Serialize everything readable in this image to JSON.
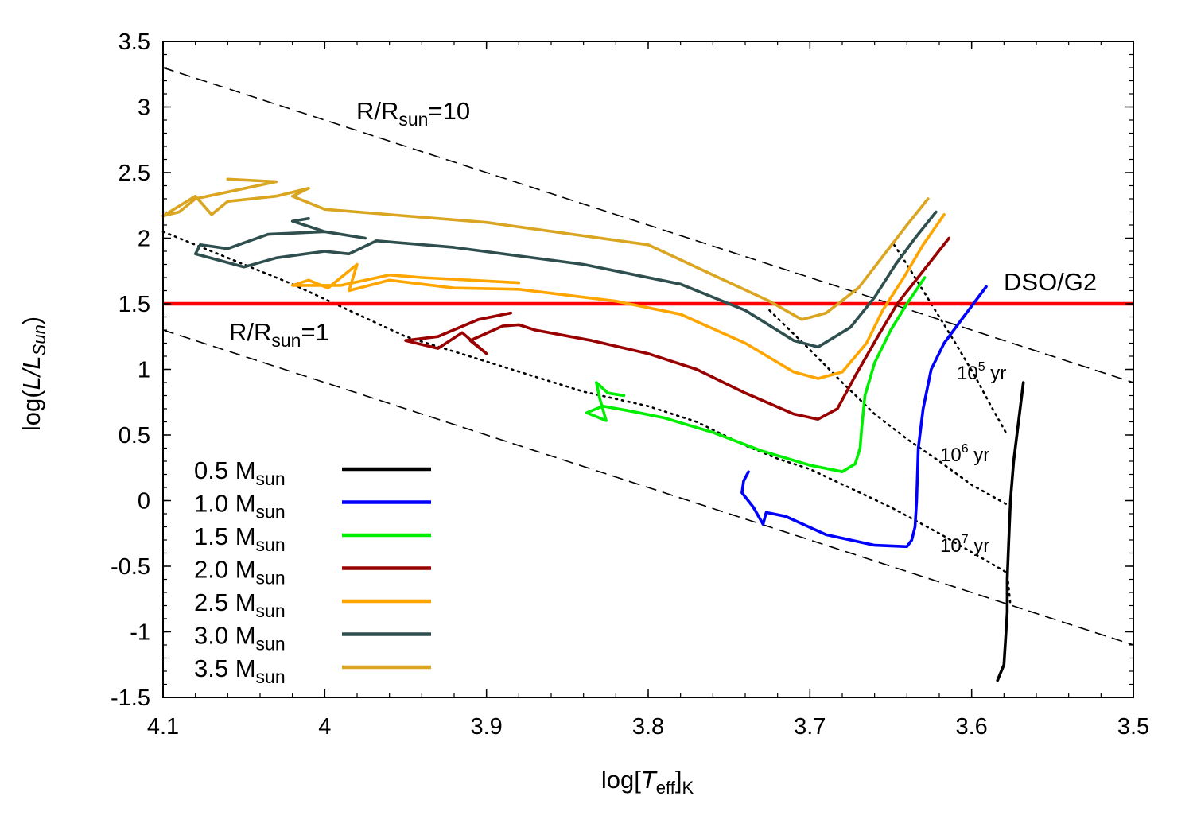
{
  "chart_data": {
    "type": "line",
    "title": "",
    "xlabel": {
      "main": "log[",
      "italic": "T",
      "sub": "eff",
      "close": "]",
      "sub2": "K"
    },
    "ylabel": {
      "main": "log(",
      "italic": "L/L",
      "sub": "Sun",
      "close": ")"
    },
    "xlim": [
      4.1,
      3.5
    ],
    "ylim": [
      -1.5,
      3.5
    ],
    "x_reversed": true,
    "grid": false,
    "xticks": [
      "4.1",
      "4",
      "3.9",
      "3.8",
      "3.7",
      "3.6",
      "3.5"
    ],
    "yticks": [
      "3.5",
      "3",
      "2.5",
      "2",
      "1.5",
      "1",
      "0.5",
      "0",
      "-0.5",
      "-1",
      "-1.5"
    ],
    "legend_position": "bottom-left",
    "series": [
      {
        "name": "0.5 M",
        "name_sub": "sun",
        "color": "#000000",
        "points": [
          [
            3.568,
            0.9
          ],
          [
            3.571,
            0.6
          ],
          [
            3.574,
            0.3
          ],
          [
            3.576,
            0.0
          ],
          [
            3.577,
            -0.3
          ],
          [
            3.578,
            -0.6
          ],
          [
            3.578,
            -0.85
          ],
          [
            3.579,
            -1.05
          ],
          [
            3.58,
            -1.25
          ],
          [
            3.583,
            -1.34
          ],
          [
            3.584,
            -1.37
          ]
        ]
      },
      {
        "name": "1.0 M",
        "name_sub": "sun",
        "color": "#0000ff",
        "points": [
          [
            3.591,
            1.63
          ],
          [
            3.605,
            1.4
          ],
          [
            3.617,
            1.2
          ],
          [
            3.625,
            1.0
          ],
          [
            3.63,
            0.7
          ],
          [
            3.633,
            0.4
          ],
          [
            3.634,
            0.0
          ],
          [
            3.635,
            -0.2
          ],
          [
            3.637,
            -0.3
          ],
          [
            3.64,
            -0.35
          ],
          [
            3.66,
            -0.34
          ],
          [
            3.69,
            -0.26
          ],
          [
            3.715,
            -0.12
          ],
          [
            3.727,
            -0.09
          ],
          [
            3.729,
            -0.18
          ],
          [
            3.735,
            -0.05
          ],
          [
            3.742,
            0.06
          ],
          [
            3.741,
            0.15
          ],
          [
            3.738,
            0.22
          ]
        ]
      },
      {
        "name": "1.5 M",
        "name_sub": "sun",
        "color": "#00ee00",
        "points": [
          [
            3.629,
            1.7
          ],
          [
            3.64,
            1.5
          ],
          [
            3.65,
            1.3
          ],
          [
            3.66,
            1.05
          ],
          [
            3.666,
            0.8
          ],
          [
            3.668,
            0.55
          ],
          [
            3.669,
            0.4
          ],
          [
            3.672,
            0.28
          ],
          [
            3.68,
            0.22
          ],
          [
            3.7,
            0.27
          ],
          [
            3.73,
            0.38
          ],
          [
            3.76,
            0.52
          ],
          [
            3.79,
            0.63
          ],
          [
            3.81,
            0.68
          ],
          [
            3.828,
            0.72
          ],
          [
            3.838,
            0.67
          ],
          [
            3.826,
            0.61
          ],
          [
            3.83,
            0.78
          ],
          [
            3.832,
            0.9
          ],
          [
            3.825,
            0.82
          ],
          [
            3.815,
            0.8
          ]
        ]
      },
      {
        "name": "2.0 M",
        "name_sub": "sun",
        "color": "#990000",
        "points": [
          [
            3.614,
            2.0
          ],
          [
            3.63,
            1.75
          ],
          [
            3.646,
            1.5
          ],
          [
            3.658,
            1.25
          ],
          [
            3.672,
            0.95
          ],
          [
            3.683,
            0.7
          ],
          [
            3.695,
            0.62
          ],
          [
            3.71,
            0.66
          ],
          [
            3.74,
            0.82
          ],
          [
            3.77,
            1.0
          ],
          [
            3.8,
            1.12
          ],
          [
            3.835,
            1.22
          ],
          [
            3.87,
            1.3
          ],
          [
            3.88,
            1.34
          ],
          [
            3.89,
            1.33
          ],
          [
            3.91,
            1.22
          ],
          [
            3.9,
            1.12
          ],
          [
            3.915,
            1.28
          ],
          [
            3.93,
            1.16
          ],
          [
            3.95,
            1.22
          ],
          [
            3.93,
            1.25
          ],
          [
            3.905,
            1.38
          ],
          [
            3.885,
            1.43
          ]
        ]
      },
      {
        "name": "2.5 M",
        "name_sub": "sun",
        "color": "#ffa500",
        "points": [
          [
            3.617,
            2.18
          ],
          [
            3.63,
            1.95
          ],
          [
            3.642,
            1.7
          ],
          [
            3.655,
            1.45
          ],
          [
            3.665,
            1.2
          ],
          [
            3.68,
            0.98
          ],
          [
            3.695,
            0.93
          ],
          [
            3.71,
            0.98
          ],
          [
            3.74,
            1.2
          ],
          [
            3.78,
            1.42
          ],
          [
            3.82,
            1.52
          ],
          [
            3.88,
            1.61
          ],
          [
            3.92,
            1.62
          ],
          [
            3.96,
            1.68
          ],
          [
            3.985,
            1.6
          ],
          [
            3.98,
            1.8
          ],
          [
            3.998,
            1.62
          ],
          [
            4.01,
            1.68
          ],
          [
            4.02,
            1.64
          ],
          [
            3.99,
            1.64
          ],
          [
            3.96,
            1.72
          ],
          [
            3.94,
            1.7
          ],
          [
            3.88,
            1.66
          ]
        ]
      },
      {
        "name": "3.0 M",
        "name_sub": "sun",
        "color": "#2f4f4f",
        "points": [
          [
            3.622,
            2.2
          ],
          [
            3.635,
            2.0
          ],
          [
            3.647,
            1.8
          ],
          [
            3.66,
            1.55
          ],
          [
            3.675,
            1.32
          ],
          [
            3.695,
            1.17
          ],
          [
            3.71,
            1.22
          ],
          [
            3.74,
            1.45
          ],
          [
            3.78,
            1.65
          ],
          [
            3.84,
            1.8
          ],
          [
            3.92,
            1.93
          ],
          [
            3.968,
            1.98
          ],
          [
            3.985,
            1.88
          ],
          [
            4.0,
            1.9
          ],
          [
            4.03,
            1.85
          ],
          [
            4.05,
            1.78
          ],
          [
            4.08,
            1.88
          ],
          [
            4.077,
            1.95
          ],
          [
            4.06,
            1.92
          ],
          [
            4.035,
            2.03
          ],
          [
            4.0,
            2.05
          ],
          [
            3.975,
            2.0
          ],
          [
            4.0,
            2.05
          ],
          [
            4.02,
            2.13
          ],
          [
            4.01,
            2.15
          ]
        ]
      },
      {
        "name": "3.5 M",
        "name_sub": "sun",
        "color": "#daa520",
        "points": [
          [
            3.627,
            2.3
          ],
          [
            3.64,
            2.1
          ],
          [
            3.655,
            1.86
          ],
          [
            3.67,
            1.62
          ],
          [
            3.69,
            1.43
          ],
          [
            3.705,
            1.38
          ],
          [
            3.725,
            1.52
          ],
          [
            3.76,
            1.72
          ],
          [
            3.8,
            1.95
          ],
          [
            3.9,
            2.12
          ],
          [
            4.0,
            2.22
          ],
          [
            4.02,
            2.32
          ],
          [
            4.01,
            2.38
          ],
          [
            4.03,
            2.32
          ],
          [
            4.06,
            2.28
          ],
          [
            4.07,
            2.18
          ],
          [
            4.08,
            2.32
          ],
          [
            4.1,
            2.17
          ],
          [
            4.09,
            2.2
          ],
          [
            4.08,
            2.3
          ],
          [
            4.03,
            2.43
          ],
          [
            4.06,
            2.45
          ]
        ]
      }
    ],
    "reference_lines": [
      {
        "label": "R/R",
        "label_sub": "sun",
        "label_tail": "=10",
        "style": "dashed",
        "points": [
          [
            4.1,
            3.3
          ],
          [
            3.5,
            0.9
          ]
        ]
      },
      {
        "label": "R/R",
        "label_sub": "sun",
        "label_tail": "=1",
        "style": "dashed",
        "points": [
          [
            4.1,
            1.3
          ],
          [
            3.5,
            -1.1
          ]
        ]
      }
    ],
    "isochrones": [
      {
        "label": "10",
        "exp": "5",
        "tail": " yr",
        "points": [
          [
            4.1,
            2.05
          ],
          [
            4.02,
            1.65
          ],
          [
            3.95,
            1.25
          ],
          [
            3.84,
            0.83
          ],
          [
            3.8,
            0.72
          ],
          [
            3.77,
            0.6
          ],
          [
            3.74,
            0.42
          ],
          [
            3.72,
            0.32
          ],
          [
            3.7,
            0.24
          ],
          [
            3.65,
            -0.05
          ],
          [
            3.62,
            -0.25
          ],
          [
            3.578,
            -0.55
          ],
          [
            3.576,
            -0.8
          ]
        ]
      },
      {
        "label": "10",
        "exp": "6",
        "tail": " yr",
        "points": [
          [
            3.725,
            1.45
          ],
          [
            3.7,
            1.15
          ],
          [
            3.68,
            0.9
          ],
          [
            3.66,
            0.66
          ],
          [
            3.64,
            0.47
          ],
          [
            3.62,
            0.3
          ],
          [
            3.6,
            0.12
          ],
          [
            3.578,
            -0.03
          ]
        ]
      },
      {
        "label": "10",
        "exp": "7",
        "tail": " yr",
        "points": [
          [
            3.648,
            1.95
          ],
          [
            3.64,
            1.8
          ],
          [
            3.63,
            1.6
          ],
          [
            3.62,
            1.4
          ],
          [
            3.61,
            1.2
          ],
          [
            3.598,
            0.95
          ],
          [
            3.588,
            0.72
          ],
          [
            3.578,
            0.5
          ]
        ]
      }
    ],
    "threshold": {
      "label": "DSO/G2",
      "y": 1.5,
      "color": "#ff0000"
    }
  }
}
